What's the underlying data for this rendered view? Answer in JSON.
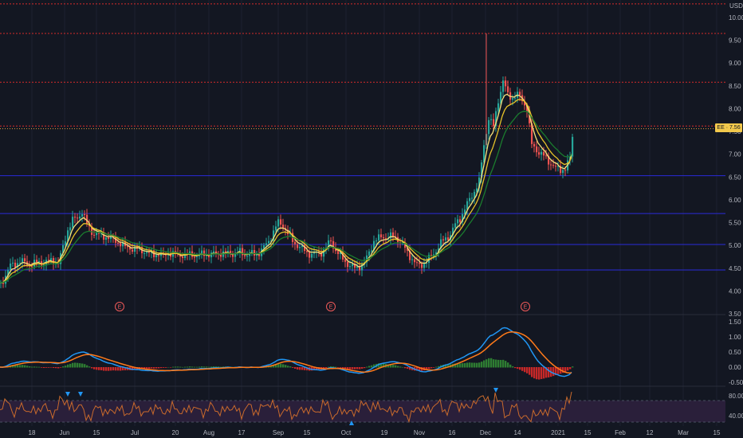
{
  "currency": "USD",
  "price_badge": "EE · 7.56",
  "colors": {
    "background": "#131722",
    "up": "#26a69a",
    "down": "#ef5350",
    "ema_fast": "#f5e07a",
    "ema_mid": "#e6c229",
    "ema_slow": "#1b7b2e",
    "macd": "#2196f3",
    "signal": "#ff7a1a",
    "rsi": "#c96a2c",
    "red_level": "#d62b2b",
    "blue_level": "#2a2bd9",
    "rsi_band": "#2a1f3a"
  },
  "earnings_marker": "E",
  "chart_data": {
    "type": "candlestick",
    "price_axis": {
      "ticks": [
        "10.00",
        "9.50",
        "9.00",
        "8.50",
        "8.00",
        "7.50",
        "7.00",
        "6.50",
        "6.00",
        "5.50",
        "5.00",
        "4.50",
        "4.00",
        "3.50"
      ],
      "ylim": [
        3.5,
        10.0
      ]
    },
    "time_axis": {
      "ticks": [
        "18",
        "Jun",
        "15",
        "Jul",
        "20",
        "Aug",
        "17",
        "Sep",
        "15",
        "Oct",
        "19",
        "Nov",
        "16",
        "Dec",
        "14",
        "2021",
        "15",
        "Feb",
        "12",
        "Mar",
        "15"
      ]
    },
    "red_levels": [
      10.3,
      9.65,
      8.58,
      7.62
    ],
    "blue_levels": [
      6.53,
      5.7,
      5.02,
      4.46
    ],
    "last_price": 7.56,
    "close_path": [
      [
        0,
        4.15
      ],
      [
        6,
        4.35
      ],
      [
        12,
        4.55
      ],
      [
        18,
        4.6
      ],
      [
        24,
        4.65
      ],
      [
        30,
        4.62
      ],
      [
        36,
        4.58
      ],
      [
        42,
        4.6
      ],
      [
        48,
        4.63
      ],
      [
        54,
        4.62
      ],
      [
        60,
        4.65
      ],
      [
        66,
        4.68
      ],
      [
        72,
        4.6
      ],
      [
        78,
        4.95
      ],
      [
        84,
        5.35
      ],
      [
        90,
        5.55
      ],
      [
        96,
        5.6
      ],
      [
        102,
        5.75
      ],
      [
        108,
        5.45
      ],
      [
        114,
        5.3
      ],
      [
        120,
        5.25
      ],
      [
        126,
        5.2
      ],
      [
        132,
        5.2
      ],
      [
        138,
        5.15
      ],
      [
        144,
        5.1
      ],
      [
        150,
        5.05
      ],
      [
        156,
        4.95
      ],
      [
        162,
        4.95
      ],
      [
        168,
        4.92
      ],
      [
        174,
        4.9
      ],
      [
        180,
        4.88
      ],
      [
        186,
        4.82
      ],
      [
        192,
        4.8
      ],
      [
        198,
        4.82
      ],
      [
        204,
        4.75
      ],
      [
        210,
        4.85
      ],
      [
        216,
        4.82
      ],
      [
        222,
        4.78
      ],
      [
        228,
        4.8
      ],
      [
        234,
        4.78
      ],
      [
        240,
        4.8
      ],
      [
        246,
        4.78
      ],
      [
        252,
        4.8
      ],
      [
        258,
        4.82
      ],
      [
        264,
        4.8
      ],
      [
        270,
        4.82
      ],
      [
        276,
        4.84
      ],
      [
        282,
        4.82
      ],
      [
        288,
        4.83
      ],
      [
        294,
        4.82
      ],
      [
        300,
        4.85
      ],
      [
        306,
        4.8
      ],
      [
        312,
        4.82
      ],
      [
        318,
        4.8
      ],
      [
        324,
        4.85
      ],
      [
        330,
        4.95
      ],
      [
        336,
        5.1
      ],
      [
        342,
        5.3
      ],
      [
        348,
        5.5
      ],
      [
        354,
        5.45
      ],
      [
        360,
        5.25
      ],
      [
        366,
        5.1
      ],
      [
        372,
        5.0
      ],
      [
        378,
        4.92
      ],
      [
        384,
        4.85
      ],
      [
        390,
        4.8
      ],
      [
        396,
        4.82
      ],
      [
        402,
        4.85
      ],
      [
        408,
        4.95
      ],
      [
        414,
        5.1
      ],
      [
        420,
        4.9
      ],
      [
        426,
        4.75
      ],
      [
        432,
        4.65
      ],
      [
        438,
        4.55
      ],
      [
        444,
        4.5
      ],
      [
        450,
        4.55
      ],
      [
        456,
        4.6
      ],
      [
        462,
        4.85
      ],
      [
        468,
        5.1
      ],
      [
        474,
        5.15
      ],
      [
        480,
        5.2
      ],
      [
        486,
        5.18
      ],
      [
        492,
        5.2
      ],
      [
        498,
        5.15
      ],
      [
        504,
        5.0
      ],
      [
        510,
        4.85
      ],
      [
        516,
        4.7
      ],
      [
        522,
        4.55
      ],
      [
        528,
        4.58
      ],
      [
        534,
        4.65
      ],
      [
        540,
        4.75
      ],
      [
        546,
        4.9
      ],
      [
        552,
        5.05
      ],
      [
        558,
        5.15
      ],
      [
        564,
        5.25
      ],
      [
        570,
        5.45
      ],
      [
        576,
        5.6
      ],
      [
        582,
        5.8
      ],
      [
        588,
        6.0
      ],
      [
        594,
        6.2
      ],
      [
        600,
        6.4
      ],
      [
        606,
        7.2
      ],
      [
        612,
        7.8
      ],
      [
        618,
        7.6
      ],
      [
        624,
        8.2
      ],
      [
        630,
        8.6
      ],
      [
        636,
        8.3
      ],
      [
        642,
        8.25
      ],
      [
        648,
        8.3
      ],
      [
        654,
        8.2
      ],
      [
        660,
        8.0
      ],
      [
        666,
        7.2
      ],
      [
        672,
        7.1
      ],
      [
        678,
        7.0
      ],
      [
        684,
        6.9
      ],
      [
        690,
        6.8
      ],
      [
        696,
        6.7
      ],
      [
        702,
        6.65
      ],
      [
        708,
        6.7
      ],
      [
        714,
        6.9
      ],
      [
        718,
        7.56
      ]
    ],
    "macd_axis": {
      "ticks": [
        "1.50",
        "1.00",
        "0.50",
        "0.00",
        "-0.50"
      ],
      "ylim": [
        -0.6,
        1.6
      ]
    },
    "rsi_axis": {
      "ticks": [
        "80.00",
        "40.00"
      ],
      "ylim": [
        30,
        90
      ],
      "upper": 70,
      "lower": 30
    }
  }
}
